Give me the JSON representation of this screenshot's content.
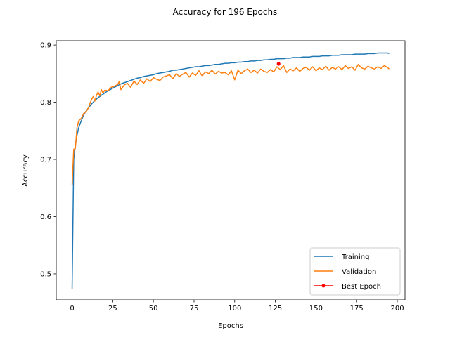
{
  "chart_data": {
    "type": "line",
    "title": "Accuracy for 196 Epochs",
    "xlabel": "Epochs",
    "ylabel": "Accuracy",
    "xlim": [
      -9.75,
      204.75
    ],
    "ylim": [
      0.4545,
      0.9075
    ],
    "xticks": [
      0,
      25,
      50,
      75,
      100,
      125,
      150,
      175,
      200
    ],
    "yticks": [
      0.5,
      0.6,
      0.7,
      0.8,
      0.9
    ],
    "xtick_labels": [
      "0",
      "25",
      "50",
      "75",
      "100",
      "125",
      "150",
      "175",
      "200"
    ],
    "ytick_labels": [
      "0.5",
      "0.6",
      "0.7",
      "0.8",
      "0.9"
    ],
    "legend": {
      "position": "lower-right",
      "entries": [
        "Training",
        "Validation",
        "Best Epoch"
      ]
    },
    "series": [
      {
        "name": "Training",
        "color": "#1f77b4",
        "x": [
          0,
          1,
          2,
          3,
          4,
          5,
          6,
          7,
          8,
          9,
          10,
          12,
          14,
          16,
          18,
          20,
          22,
          24,
          26,
          28,
          30,
          32,
          34,
          36,
          38,
          40,
          42,
          44,
          46,
          48,
          50,
          52,
          54,
          56,
          58,
          60,
          62,
          64,
          66,
          68,
          70,
          72,
          74,
          76,
          78,
          80,
          82,
          84,
          86,
          88,
          90,
          92,
          94,
          96,
          98,
          100,
          102,
          104,
          106,
          108,
          110,
          112,
          114,
          116,
          118,
          120,
          122,
          124,
          126,
          128,
          130,
          132,
          134,
          136,
          138,
          140,
          142,
          144,
          146,
          148,
          150,
          152,
          154,
          156,
          158,
          160,
          162,
          164,
          166,
          168,
          170,
          172,
          174,
          176,
          178,
          180,
          182,
          184,
          186,
          188,
          190,
          192,
          194,
          195
        ],
        "values": [
          0.474,
          0.7,
          0.725,
          0.742,
          0.755,
          0.763,
          0.77,
          0.777,
          0.782,
          0.786,
          0.79,
          0.797,
          0.803,
          0.808,
          0.812,
          0.816,
          0.82,
          0.823,
          0.826,
          0.829,
          0.832,
          0.834,
          0.836,
          0.838,
          0.84,
          0.842,
          0.843,
          0.845,
          0.846,
          0.847,
          0.848,
          0.85,
          0.851,
          0.852,
          0.853,
          0.854,
          0.856,
          0.856,
          0.857,
          0.858,
          0.859,
          0.86,
          0.861,
          0.862,
          0.862,
          0.863,
          0.864,
          0.864,
          0.865,
          0.866,
          0.866,
          0.867,
          0.868,
          0.868,
          0.869,
          0.869,
          0.87,
          0.87,
          0.871,
          0.871,
          0.872,
          0.872,
          0.873,
          0.873,
          0.874,
          0.874,
          0.875,
          0.875,
          0.876,
          0.876,
          0.876,
          0.877,
          0.877,
          0.878,
          0.878,
          0.878,
          0.879,
          0.879,
          0.879,
          0.88,
          0.88,
          0.88,
          0.881,
          0.881,
          0.881,
          0.882,
          0.882,
          0.882,
          0.883,
          0.883,
          0.883,
          0.883,
          0.884,
          0.884,
          0.884,
          0.884,
          0.885,
          0.885,
          0.885,
          0.886,
          0.886,
          0.886,
          0.886,
          0.885
        ]
      },
      {
        "name": "Validation",
        "color": "#ff7f0e",
        "x": [
          0,
          1,
          2,
          3,
          4,
          5,
          6,
          7,
          8,
          9,
          10,
          11,
          12,
          13,
          14,
          15,
          16,
          17,
          18,
          19,
          20,
          22,
          24,
          26,
          28,
          29,
          30,
          32,
          34,
          36,
          38,
          40,
          42,
          44,
          46,
          48,
          50,
          52,
          54,
          56,
          58,
          60,
          62,
          64,
          66,
          68,
          70,
          72,
          74,
          76,
          78,
          80,
          82,
          84,
          86,
          88,
          90,
          92,
          94,
          96,
          98,
          100,
          102,
          104,
          106,
          108,
          110,
          112,
          114,
          116,
          118,
          120,
          122,
          124,
          126,
          128,
          130,
          132,
          134,
          136,
          138,
          140,
          142,
          144,
          146,
          148,
          150,
          152,
          154,
          156,
          158,
          160,
          162,
          164,
          166,
          168,
          170,
          172,
          174,
          176,
          178,
          180,
          182,
          184,
          186,
          188,
          190,
          192,
          194,
          195
        ],
        "values": [
          0.655,
          0.718,
          0.719,
          0.755,
          0.767,
          0.77,
          0.773,
          0.78,
          0.782,
          0.785,
          0.79,
          0.798,
          0.805,
          0.81,
          0.802,
          0.812,
          0.818,
          0.811,
          0.822,
          0.816,
          0.821,
          0.82,
          0.826,
          0.828,
          0.831,
          0.836,
          0.822,
          0.83,
          0.833,
          0.826,
          0.837,
          0.831,
          0.839,
          0.833,
          0.841,
          0.836,
          0.843,
          0.84,
          0.838,
          0.844,
          0.846,
          0.848,
          0.841,
          0.85,
          0.845,
          0.849,
          0.852,
          0.844,
          0.851,
          0.847,
          0.855,
          0.846,
          0.853,
          0.85,
          0.856,
          0.849,
          0.854,
          0.851,
          0.852,
          0.848,
          0.855,
          0.839,
          0.856,
          0.85,
          0.855,
          0.858,
          0.852,
          0.856,
          0.851,
          0.858,
          0.854,
          0.852,
          0.857,
          0.853,
          0.862,
          0.857,
          0.864,
          0.852,
          0.858,
          0.855,
          0.86,
          0.854,
          0.859,
          0.861,
          0.856,
          0.862,
          0.855,
          0.86,
          0.857,
          0.863,
          0.856,
          0.861,
          0.858,
          0.862,
          0.857,
          0.864,
          0.859,
          0.862,
          0.856,
          0.866,
          0.86,
          0.858,
          0.863,
          0.86,
          0.858,
          0.862,
          0.859,
          0.864,
          0.861,
          0.858
        ]
      },
      {
        "name": "Best Epoch",
        "color": "#ff0000",
        "x": [
          127
        ],
        "values": [
          0.867
        ]
      }
    ]
  }
}
